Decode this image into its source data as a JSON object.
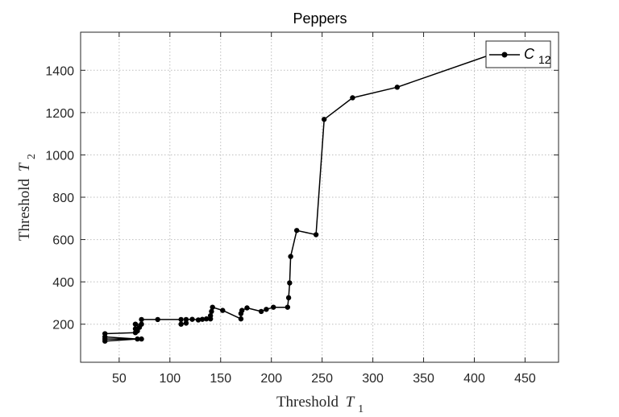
{
  "chart_data": {
    "type": "line",
    "title": "Peppers",
    "xlabel": {
      "text": "Threshold",
      "symbol": "T",
      "subscript": "1"
    },
    "ylabel": {
      "text": "Threshold",
      "symbol": "T",
      "subscript": "2"
    },
    "xlim": [
      12,
      483
    ],
    "ylim": [
      20,
      1580
    ],
    "xticks": [
      50,
      100,
      150,
      200,
      250,
      300,
      350,
      400,
      450
    ],
    "yticks": [
      200,
      400,
      600,
      800,
      1000,
      1200,
      1400
    ],
    "grid": true,
    "legend_position": "top-right",
    "series": [
      {
        "name": "C",
        "name_subscript": "12",
        "color": "#000000",
        "marker": "circle",
        "x": [
          72,
          36,
          36,
          68,
          36,
          36,
          66,
          68,
          66,
          70,
          66,
          72,
          72,
          88,
          111,
          111,
          116,
          116,
          122,
          128,
          132,
          136,
          140,
          140,
          141,
          142,
          152,
          170,
          170,
          171,
          176,
          190,
          195,
          202,
          216,
          217,
          218,
          219,
          225,
          244,
          252,
          280,
          324,
          432
        ],
        "y": [
          130,
          130,
          120,
          130,
          140,
          155,
          160,
          168,
          178,
          185,
          200,
          200,
          222,
          222,
          222,
          200,
          205,
          222,
          223,
          220,
          223,
          225,
          225,
          240,
          260,
          280,
          265,
          225,
          250,
          265,
          277,
          260,
          270,
          280,
          280,
          325,
          395,
          520,
          643,
          623,
          1168,
          1270,
          1320,
          1500
        ]
      }
    ]
  }
}
